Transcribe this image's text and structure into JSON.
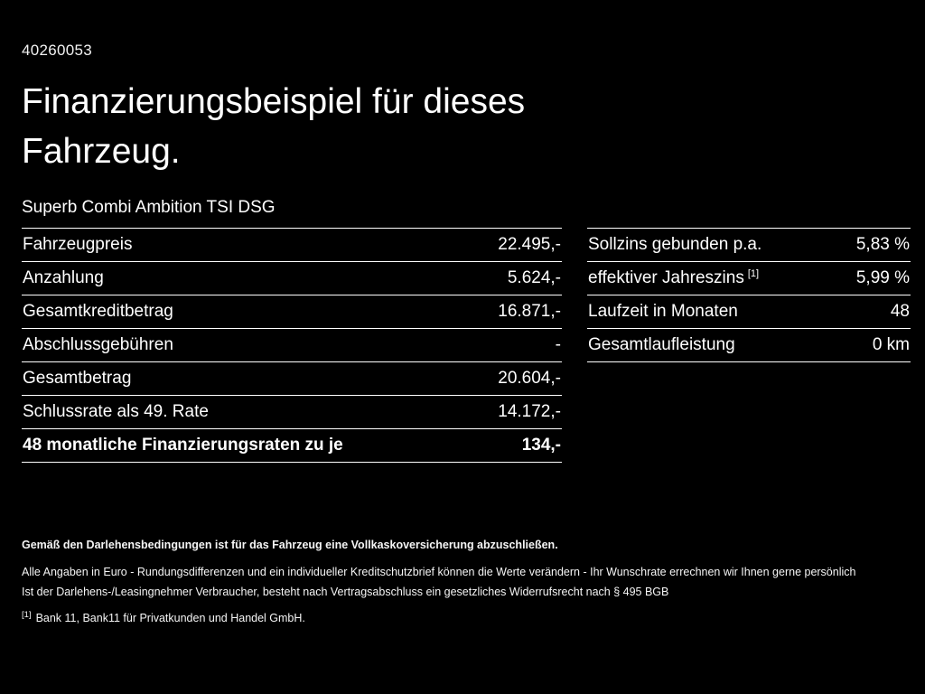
{
  "page": {
    "id": "40260053",
    "title_line1": "Finanzierungsbeispiel für dieses",
    "title_line2": "Fahrzeug.",
    "subtitle": "Superb Combi Ambition TSI DSG"
  },
  "left_table": {
    "rows": [
      {
        "label": "Fahrzeugpreis",
        "value": "22.495,-"
      },
      {
        "label": "Anzahlung",
        "value": "5.624,-"
      },
      {
        "label": "Gesamtkreditbetrag",
        "value": "16.871,-"
      },
      {
        "label": "Abschlussgebühren",
        "value": "-"
      },
      {
        "label": "Gesamtbetrag",
        "value": "20.604,-"
      },
      {
        "label": "Schlussrate als 49. Rate",
        "value": "14.172,-"
      },
      {
        "label": "48 monatliche Finanzierungsraten zu je",
        "value": "134,-"
      }
    ]
  },
  "right_table": {
    "rows": [
      {
        "label": "Sollzins gebunden p.a.",
        "value": "5,83 %"
      },
      {
        "label": "effektiver Jahreszins",
        "sup": "[1]",
        "value": "5,99 %"
      },
      {
        "label": "Laufzeit in Monaten",
        "value": "48"
      },
      {
        "label": "Gesamtlaufleistung",
        "value": "0 km"
      }
    ]
  },
  "footer": {
    "bold_note": "Gemäß den Darlehensbedingungen ist für das Fahrzeug eine Vollkaskoversicherung abzuschließen.",
    "note2": "Alle Angaben in Euro - Rundungsdifferenzen und ein individueller Kreditschutzbrief können die Werte verändern - Ihr Wunschrate errechnen wir Ihnen gerne persönlich",
    "note3": "Ist der Darlehens-/Leasingnehmer Verbraucher, besteht nach Vertragsabschluss ein gesetzliches Widerrufsrecht nach § 495 BGB",
    "footnote_marker": "[1]",
    "footnote_text": "Bank 11, Bank11 für Privatkunden und Handel GmbH."
  }
}
